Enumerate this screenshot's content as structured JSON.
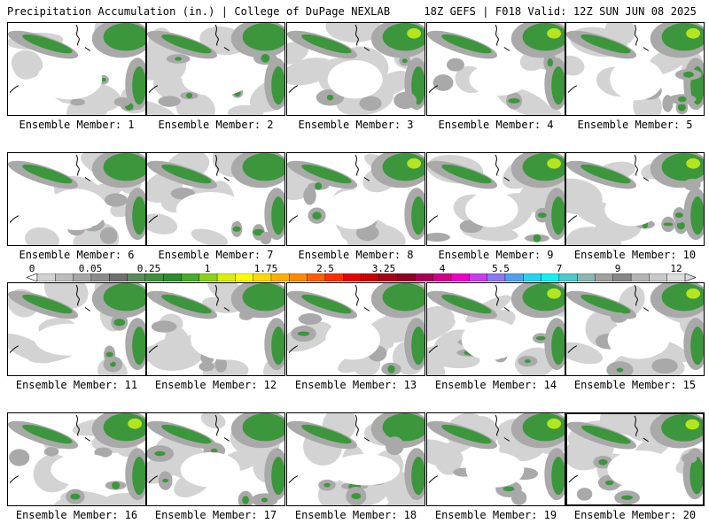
{
  "header": {
    "title": "Precipitation Accumulation (in.) | College of DuPage NEXLAB",
    "info": "18Z GEFS | F018 Valid: 12Z SUN JUN 08 2025"
  },
  "label_prefix": "Ensemble Member: ",
  "members": [
    {
      "label": "Ensemble Member: 1"
    },
    {
      "label": "Ensemble Member: 2"
    },
    {
      "label": "Ensemble Member: 3"
    },
    {
      "label": "Ensemble Member: 4"
    },
    {
      "label": "Ensemble Member: 5"
    },
    {
      "label": "Ensemble Member: 6"
    },
    {
      "label": "Ensemble Member: 7"
    },
    {
      "label": "Ensemble Member: 8"
    },
    {
      "label": "Ensemble Member: 9"
    },
    {
      "label": "Ensemble Member: 10"
    },
    {
      "label": "Ensemble Member: 11"
    },
    {
      "label": "Ensemble Member: 12"
    },
    {
      "label": "Ensemble Member: 13"
    },
    {
      "label": "Ensemble Member: 14"
    },
    {
      "label": "Ensemble Member: 15"
    },
    {
      "label": "Ensemble Member: 16"
    },
    {
      "label": "Ensemble Member: 17"
    },
    {
      "label": "Ensemble Member: 18"
    },
    {
      "label": "Ensemble Member: 19"
    },
    {
      "label": "Ensemble Member: 20"
    }
  ],
  "selected_member": 20,
  "colorbar": {
    "tick_labels": [
      "0",
      "0.05",
      "0.25",
      "1",
      "1.75",
      "2.5",
      "3.25",
      "4",
      "5.5",
      "7",
      "9",
      "12"
    ],
    "colors": [
      "#d2d2d2",
      "#bcbcbc",
      "#a6a6a6",
      "#8c8c8c",
      "#6f6f6f",
      "#5c8a5c",
      "#3f8f3f",
      "#2e8b2e",
      "#48a92a",
      "#8ccf1c",
      "#d8ee0e",
      "#ffff00",
      "#ffd800",
      "#ffaf00",
      "#ff8a00",
      "#ff5f00",
      "#ff2f00",
      "#e80000",
      "#c80000",
      "#a80018",
      "#8e0028",
      "#a8005a",
      "#d2008c",
      "#f000c8",
      "#c83cf0",
      "#8c78f0",
      "#50a0f0",
      "#28d2f0",
      "#14f0f0",
      "#50c8c8",
      "#8cb4b4",
      "#a0a0a0",
      "#888888",
      "#b4b4b4",
      "#c8c8c8",
      "#dcdcdc"
    ]
  },
  "colors": {
    "light_gray": "#d3d3d3",
    "mid_gray": "#a9a9a9",
    "dark_gray": "#7f7f7f",
    "green": "#3c963c",
    "bright_green": "#2e8b2e",
    "yellow_green": "#b4e61e"
  }
}
